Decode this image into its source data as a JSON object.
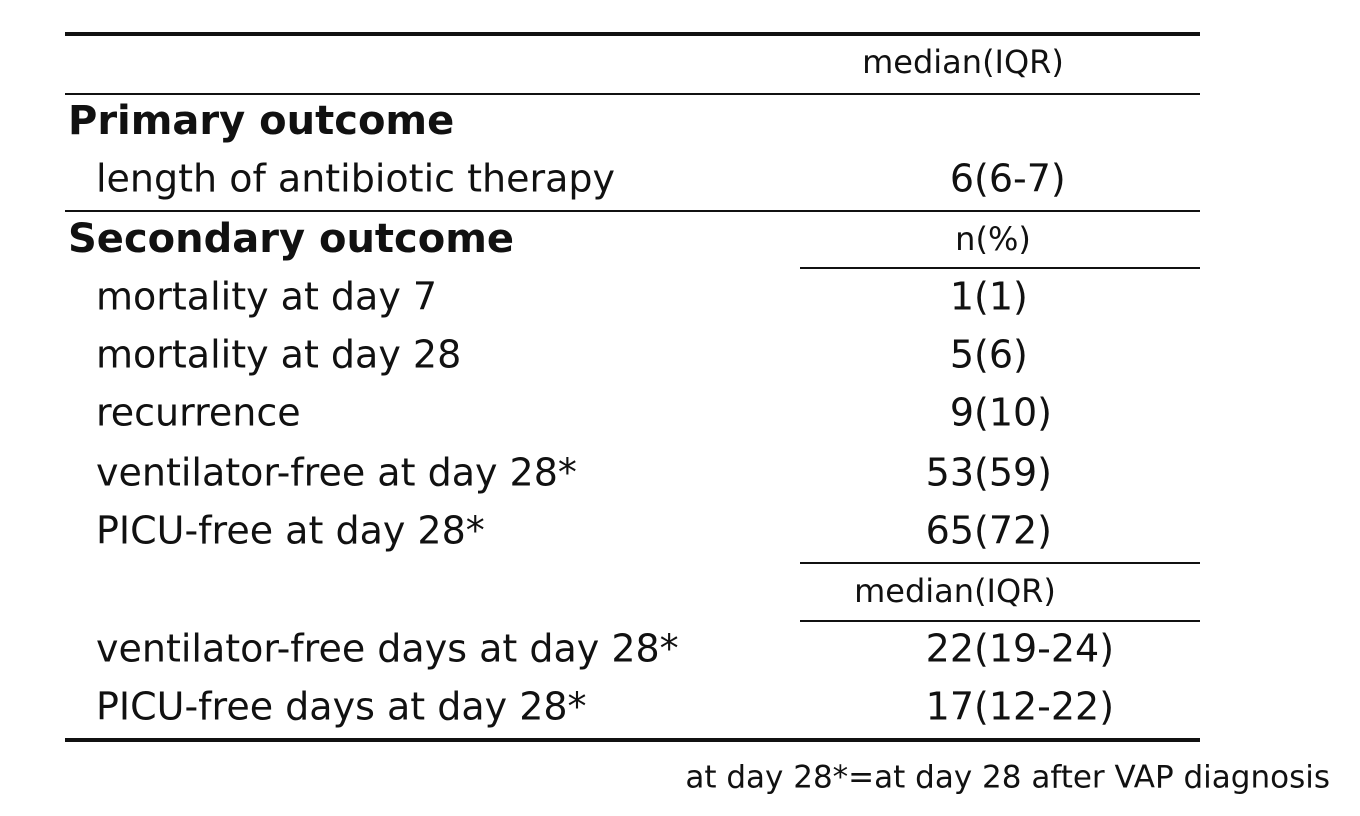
{
  "header": {
    "column_label": "median(IQR)"
  },
  "sections": [
    {
      "title": "Primary outcome",
      "rows": [
        {
          "label": "length of antibiotic therapy",
          "value": "6(6-7)"
        }
      ]
    },
    {
      "title": "Secondary outcome",
      "column_label": "n(%)",
      "rows": [
        {
          "label": "mortality at day 7",
          "value": "1(1)"
        },
        {
          "label": "mortality at day 28",
          "value": "5(6)"
        },
        {
          "label": "recurrence",
          "value": "9(10)"
        },
        {
          "label": "ventilator-free at day 28*",
          "value": "53(59)"
        },
        {
          "label": "PICU-free at day 28*",
          "value": "65(72)"
        }
      ],
      "subgroup": {
        "column_label": "median(IQR)",
        "rows": [
          {
            "label": "ventilator-free days at day 28*",
            "value": "22(19-24)"
          },
          {
            "label": "PICU-free days at day 28*",
            "value": "17(12-22)"
          }
        ]
      }
    }
  ],
  "footnote": "at day 28*=at day 28 after VAP diagnosis"
}
